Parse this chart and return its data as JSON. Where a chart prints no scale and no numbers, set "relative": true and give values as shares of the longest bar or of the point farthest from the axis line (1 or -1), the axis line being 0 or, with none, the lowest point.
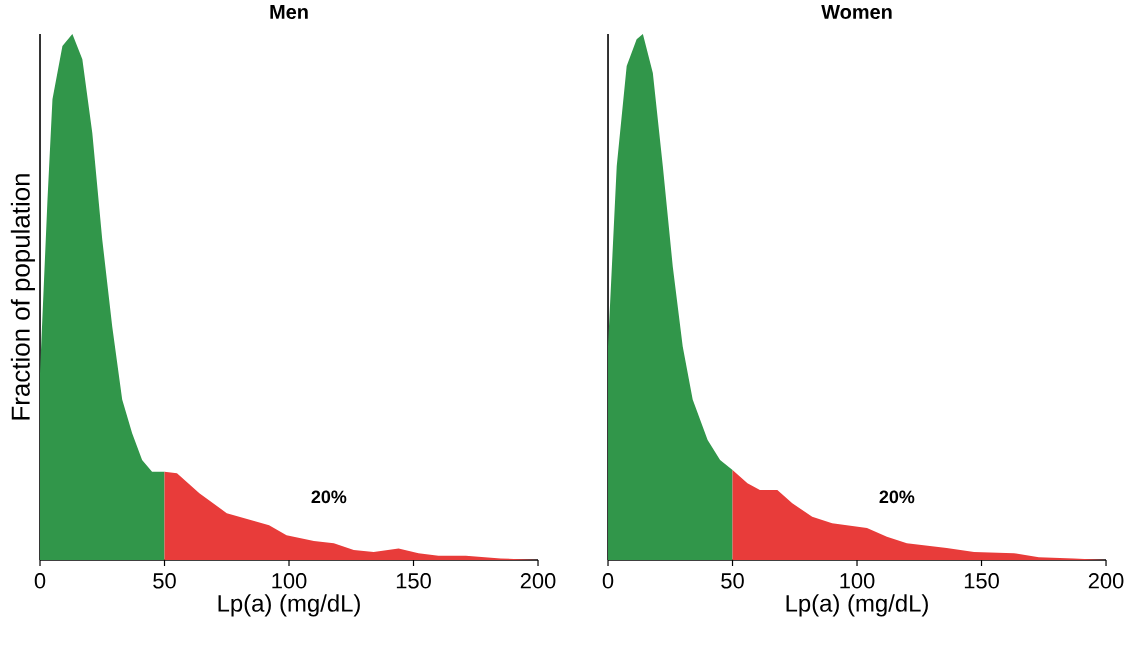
{
  "chart_data": [
    {
      "type": "area",
      "title": "Men",
      "xlabel": "Lp(a) (mg/dL)",
      "ylabel": "Fraction of population",
      "relative": true,
      "xlim": [
        0,
        200
      ],
      "xticks": [
        0,
        50,
        100,
        150,
        200
      ],
      "annotations": [
        "20%"
      ],
      "series": [
        {
          "color": "#31964a",
          "x": [
            0,
            3,
            5,
            9,
            13,
            17,
            21,
            25,
            29,
            33,
            37,
            41,
            45,
            50
          ],
          "values": [
            0.355,
            0.685,
            0.876,
            0.977,
            1.0,
            0.952,
            0.812,
            0.609,
            0.444,
            0.305,
            0.241,
            0.19,
            0.168,
            0.168
          ]
        },
        {
          "color": "#e83c3a",
          "x": [
            50,
            55,
            64,
            75,
            86,
            92,
            99,
            110,
            118,
            126,
            134,
            144,
            152,
            160,
            171,
            185,
            200
          ],
          "values": [
            0.168,
            0.165,
            0.127,
            0.089,
            0.074,
            0.066,
            0.047,
            0.036,
            0.032,
            0.019,
            0.015,
            0.022,
            0.013,
            0.008,
            0.008,
            0.003,
            0
          ]
        }
      ]
    },
    {
      "type": "area",
      "title": "Women",
      "xlabel": "Lp(a) (mg/dL)",
      "relative": true,
      "xlim": [
        0,
        200
      ],
      "xticks": [
        0,
        50,
        100,
        150,
        200
      ],
      "annotations": [
        "20%"
      ],
      "series": [
        {
          "color": "#31964a",
          "x": [
            0,
            3.5,
            7.5,
            11.5,
            14,
            18,
            22,
            26,
            30,
            34,
            40,
            45,
            50
          ],
          "values": [
            0.406,
            0.749,
            0.939,
            0.99,
            1.0,
            0.926,
            0.749,
            0.558,
            0.406,
            0.305,
            0.228,
            0.19,
            0.171
          ]
        },
        {
          "color": "#e83c3a",
          "x": [
            50,
            56,
            61,
            68,
            74,
            82,
            90,
            104,
            112,
            120,
            136,
            147,
            163,
            173,
            187,
            200
          ],
          "values": [
            0.171,
            0.146,
            0.133,
            0.133,
            0.108,
            0.082,
            0.07,
            0.061,
            0.044,
            0.032,
            0.023,
            0.015,
            0.013,
            0.005,
            0.003,
            0
          ]
        }
      ]
    }
  ]
}
